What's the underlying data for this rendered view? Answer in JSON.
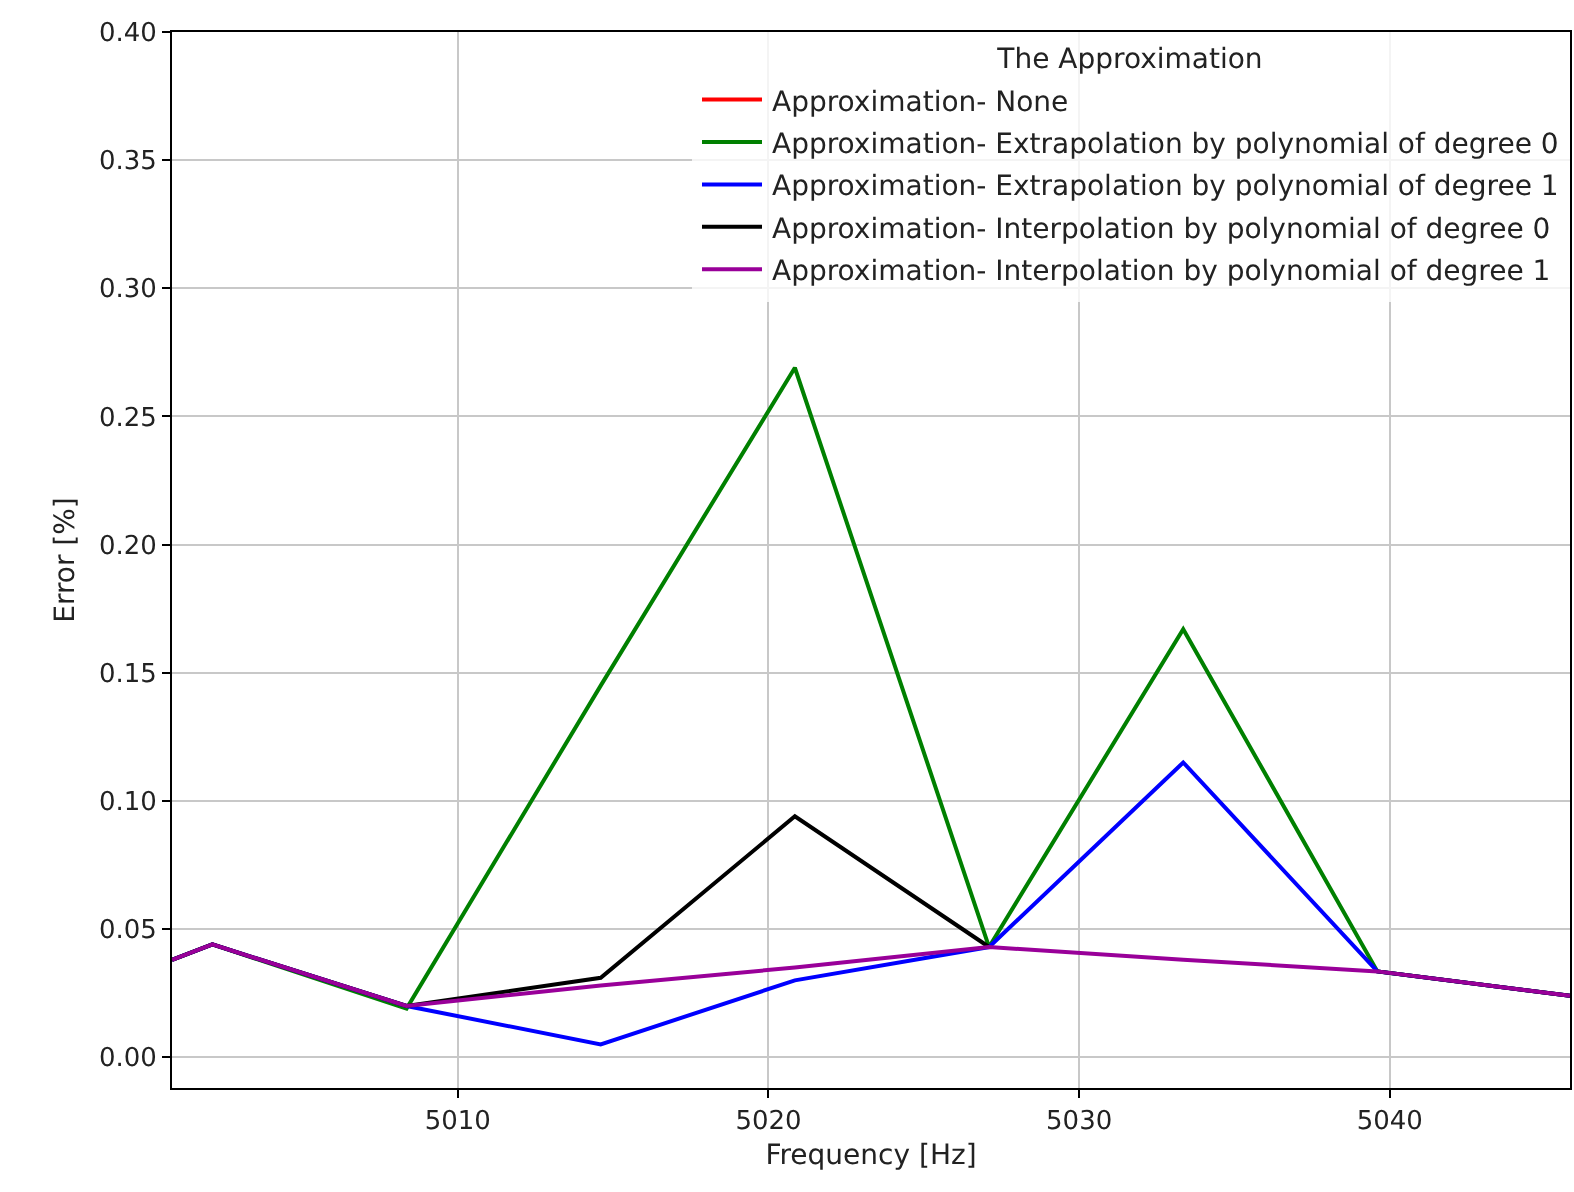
{
  "chart_data": {
    "type": "line",
    "xlabel": "Frequency [Hz]",
    "ylabel": "Error [%]",
    "legend_title": "The Approximation",
    "x": [
      5000.8,
      5002.1,
      5008.35,
      5014.6,
      5020.85,
      5027.1,
      5033.35,
      5039.6,
      5045.8
    ],
    "series": [
      {
        "name": "Approximation- None",
        "color": "#ff0000",
        "values": [
          null,
          null,
          null,
          null,
          null,
          null,
          null,
          null,
          null
        ]
      },
      {
        "name": "Approximation- Extrapolation by polynomial of degree 0",
        "color": "#008000",
        "values": [
          0.038,
          0.044,
          0.019,
          0.145,
          0.269,
          0.043,
          0.167,
          0.0335,
          0.024
        ]
      },
      {
        "name": "Approximation- Extrapolation by polynomial of degree 1",
        "color": "#0000ff",
        "values": [
          0.038,
          0.044,
          0.02,
          0.005,
          0.03,
          0.043,
          0.115,
          0.0335,
          0.024
        ]
      },
      {
        "name": "Approximation- Interpolation by polynomial of degree 0",
        "color": "#000000",
        "values": [
          0.038,
          0.044,
          0.02,
          0.031,
          0.094,
          0.043,
          null,
          0.0335,
          0.024
        ]
      },
      {
        "name": "Approximation- Interpolation by polynomial of degree 1",
        "color": "#990099",
        "values": [
          0.038,
          0.044,
          0.02,
          0.028,
          0.035,
          0.043,
          0.038,
          0.0335,
          0.024
        ]
      }
    ],
    "xlim": [
      5000.8,
      5045.8
    ],
    "xticks": [
      5010,
      5020,
      5030,
      5040
    ],
    "ylim": [
      -0.012,
      0.4
    ],
    "yticks": [
      {
        "value": 0,
        "label": "0.00"
      },
      {
        "value": 0.05,
        "label": "0.05"
      },
      {
        "value": 0.1,
        "label": "0.10"
      },
      {
        "value": 0.15,
        "label": "0.15"
      },
      {
        "value": 0.2,
        "label": "0.20"
      },
      {
        "value": 0.25,
        "label": "0.25"
      },
      {
        "value": 0.3,
        "label": "0.30"
      },
      {
        "value": 0.35,
        "label": "0.35"
      },
      {
        "value": 0.4,
        "label": "0.40"
      }
    ],
    "grid": true,
    "legend": "top right",
    "line_style": "solid"
  }
}
